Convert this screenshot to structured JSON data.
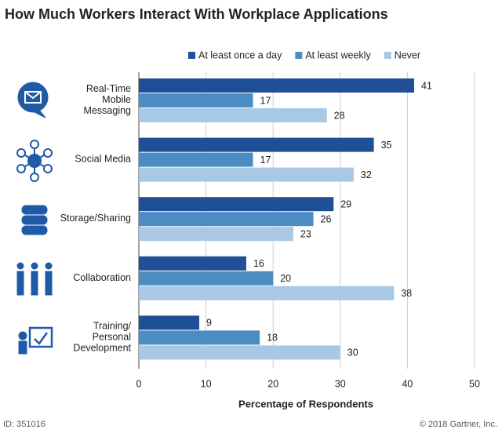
{
  "chart_data": {
    "type": "hbar-grouped",
    "title": "How Much Workers Interact With Workplace Applications",
    "categories": [
      "Real-Time\nMobile\nMessaging",
      "Social Media",
      "Storage/Sharing",
      "Collaboration",
      "Training/\nPersonal\nDevelopment"
    ],
    "series": [
      {
        "name": "At least once a day",
        "color": "#1f4f96",
        "values": [
          41,
          35,
          29,
          16,
          9
        ]
      },
      {
        "name": "At least weekly",
        "color": "#4b8dc2",
        "values": [
          17,
          17,
          26,
          20,
          18
        ]
      },
      {
        "name": "Never",
        "color": "#a8c8e6",
        "values": [
          28,
          32,
          23,
          38,
          30
        ]
      }
    ],
    "xlim": [
      0,
      50
    ],
    "xticks": [
      0,
      10,
      20,
      30,
      40,
      50
    ],
    "grid": true,
    "xlabel": "Percentage of Respondents",
    "footer_left": "ID: 351016",
    "footer_right": "© 2018 Gartner, Inc."
  }
}
